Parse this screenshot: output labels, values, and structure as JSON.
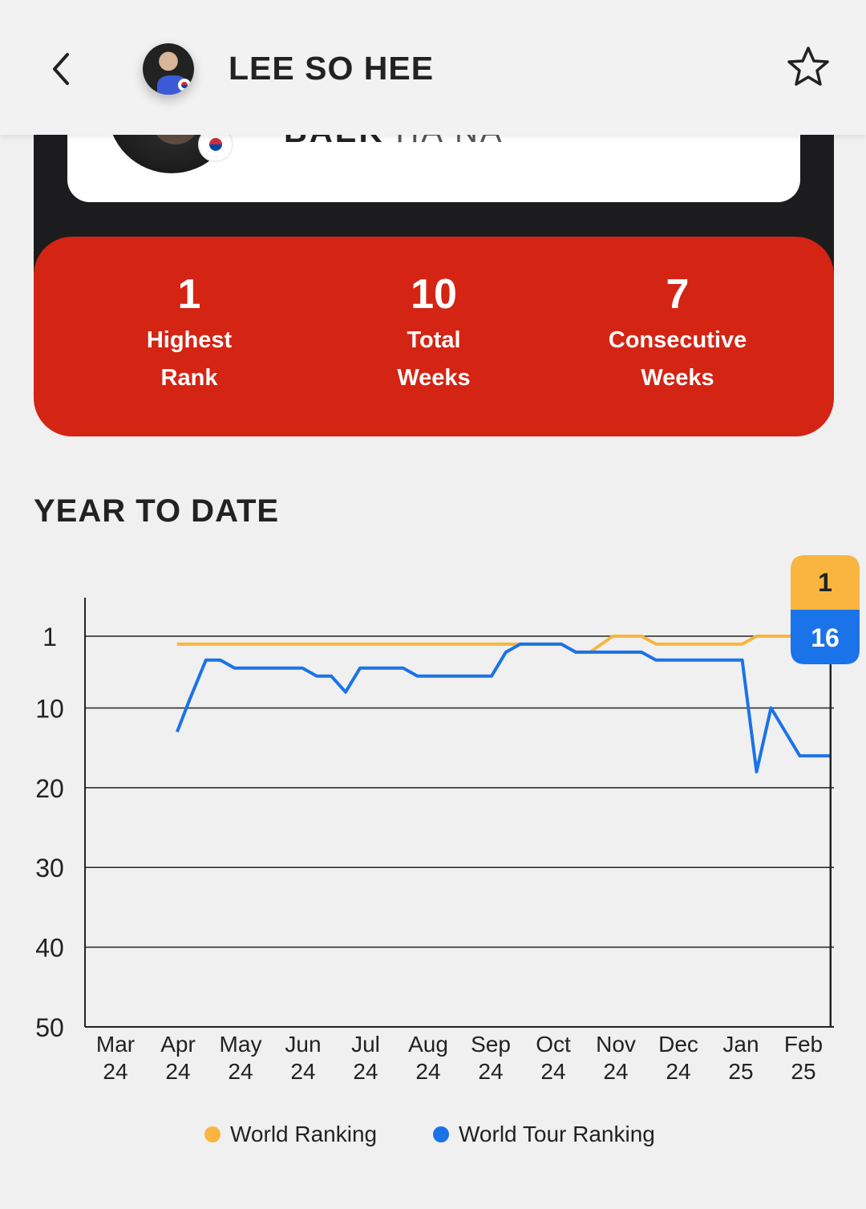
{
  "header": {
    "player_name": "LEE SO HEE"
  },
  "partner": {
    "name_dark": "BAEK",
    "name_light": "HA NA"
  },
  "stats": [
    {
      "value": "1",
      "label_line1": "Highest",
      "label_line2": "Rank"
    },
    {
      "value": "10",
      "label_line1": "Total",
      "label_line2": "Weeks"
    },
    {
      "value": "7",
      "label_line1": "Consecutive",
      "label_line2": "Weeks"
    }
  ],
  "section": {
    "title": "YEAR TO DATE"
  },
  "colors": {
    "stats_bg": "#d42414",
    "world_ranking": "#f9b53f",
    "world_tour_ranking": "#1a73e8"
  },
  "chart_data": {
    "type": "line",
    "y_axis": {
      "reversed": true,
      "ylim": [
        -4,
        50
      ],
      "ticks": [
        1,
        10,
        20,
        30,
        40,
        50
      ]
    },
    "x_ticks": [
      {
        "month": "Mar",
        "year": "24",
        "date": "2024-03-01"
      },
      {
        "month": "Apr",
        "year": "24",
        "date": "2024-04-01"
      },
      {
        "month": "May",
        "year": "24",
        "date": "2024-05-01"
      },
      {
        "month": "Jun",
        "year": "24",
        "date": "2024-06-01"
      },
      {
        "month": "Jul",
        "year": "24",
        "date": "2024-07-01"
      },
      {
        "month": "Aug",
        "year": "24",
        "date": "2024-08-01"
      },
      {
        "month": "Sep",
        "year": "24",
        "date": "2024-09-01"
      },
      {
        "month": "Oct",
        "year": "24",
        "date": "2024-10-01"
      },
      {
        "month": "Nov",
        "year": "24",
        "date": "2024-11-01"
      },
      {
        "month": "Dec",
        "year": "24",
        "date": "2024-12-01"
      },
      {
        "month": "Jan",
        "year": "25",
        "date": "2025-01-01"
      },
      {
        "month": "Feb",
        "year": "25",
        "date": "2025-02-01"
      }
    ],
    "grid": true,
    "legend_position": "bottom",
    "series": [
      {
        "name": "World Ranking",
        "color": "#f9b53f",
        "points": [
          [
            "2024-03-31",
            2
          ],
          [
            "2024-09-24",
            2
          ],
          [
            "2024-10-04",
            2
          ],
          [
            "2024-10-11",
            3
          ],
          [
            "2024-10-18",
            3
          ],
          [
            "2024-10-29",
            1
          ],
          [
            "2024-11-12",
            1
          ],
          [
            "2024-11-19",
            2
          ],
          [
            "2024-12-31",
            2
          ],
          [
            "2025-01-07",
            1
          ],
          [
            "2025-02-12",
            1
          ]
        ],
        "current_value": "1"
      },
      {
        "name": "World Tour Ranking",
        "color": "#1a73e8",
        "points": [
          [
            "2024-03-31",
            13
          ],
          [
            "2024-04-06",
            9
          ],
          [
            "2024-04-14",
            4
          ],
          [
            "2024-04-21",
            4
          ],
          [
            "2024-04-28",
            5
          ],
          [
            "2024-05-31",
            5
          ],
          [
            "2024-06-07",
            6
          ],
          [
            "2024-06-14",
            6
          ],
          [
            "2024-06-21",
            8
          ],
          [
            "2024-06-28",
            5
          ],
          [
            "2024-07-19",
            5
          ],
          [
            "2024-07-26",
            6
          ],
          [
            "2024-08-31",
            6
          ],
          [
            "2024-09-07",
            3
          ],
          [
            "2024-09-14",
            2
          ],
          [
            "2024-10-04",
            2
          ],
          [
            "2024-10-11",
            3
          ],
          [
            "2024-11-12",
            3
          ],
          [
            "2024-11-19",
            4
          ],
          [
            "2024-12-31",
            4
          ],
          [
            "2025-01-07",
            18
          ],
          [
            "2025-01-14",
            10
          ],
          [
            "2025-01-28",
            16
          ],
          [
            "2025-02-12",
            16
          ]
        ],
        "current_value": "16"
      }
    ]
  }
}
